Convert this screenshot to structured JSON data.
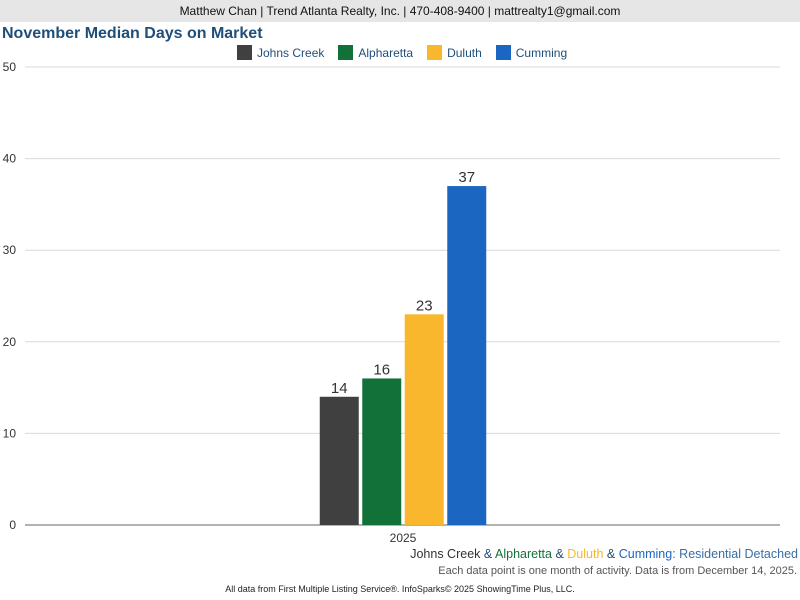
{
  "header": {
    "contact": "Matthew Chan | Trend Atlanta Realty, Inc. | 470-408-9400 | mattrealty1@gmail.com"
  },
  "chart_data": {
    "type": "bar",
    "title": "November Median Days on Market",
    "categories": [
      "2025"
    ],
    "series": [
      {
        "name": "Johns Creek",
        "values": [
          14
        ],
        "color": "#404040"
      },
      {
        "name": "Alpharetta",
        "values": [
          16
        ],
        "color": "#127039"
      },
      {
        "name": "Duluth",
        "values": [
          23
        ],
        "color": "#f8b72c"
      },
      {
        "name": "Cumming",
        "values": [
          37
        ],
        "color": "#1a66c1"
      }
    ],
    "ylim": [
      0,
      50
    ],
    "yticks": [
      0,
      10,
      20,
      30,
      40,
      50
    ],
    "grid": true,
    "legend": "top"
  },
  "footer": {
    "series_line": {
      "a": "Johns Creek",
      "sep1": " & ",
      "b": "Alpharetta",
      "sep2": " & ",
      "c": "Duluth",
      "sep3": " & ",
      "d": "Cumming",
      "suffix": ": Residential Detached"
    },
    "note": "Each data point is one month of activity. Data is from December 14, 2025.",
    "source": "All data from First Multiple Listing Service®. InfoSparks© 2025 ShowingTime Plus, LLC."
  }
}
